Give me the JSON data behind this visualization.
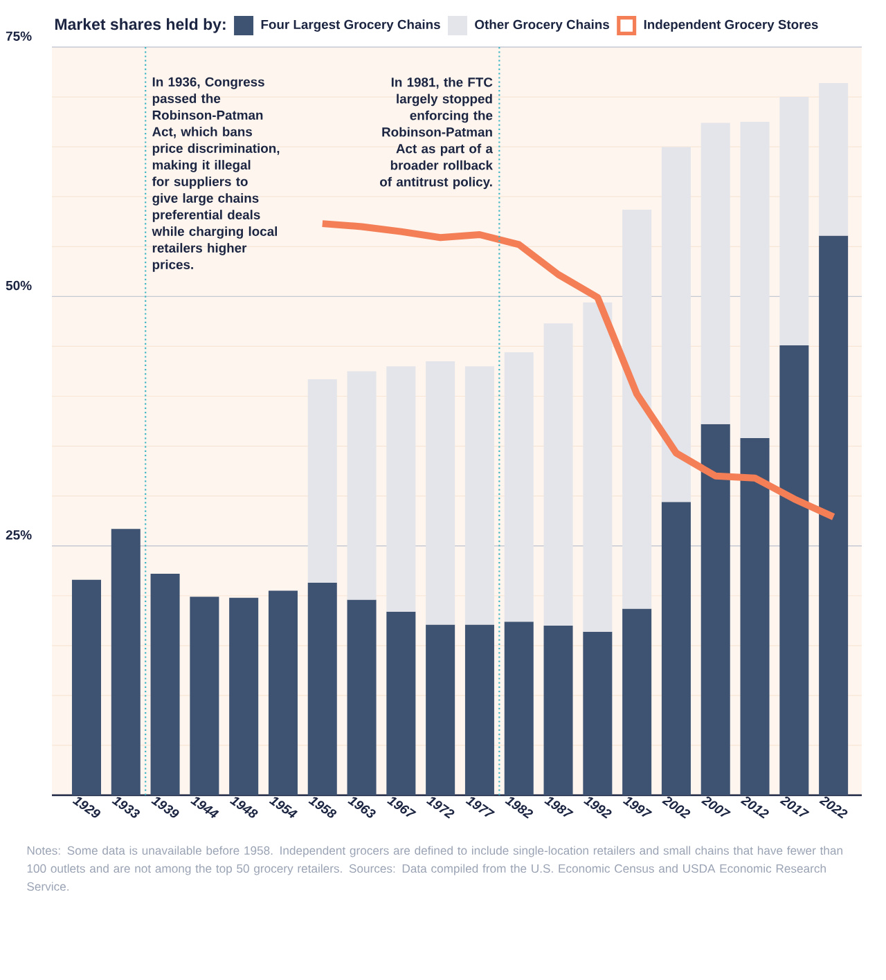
{
  "chart_data": {
    "type": "bar",
    "stacked": true,
    "legend_title": "Market shares held by:",
    "legend": "top",
    "grid": "y",
    "categories": [
      "1929",
      "1933",
      "1939",
      "1944",
      "1948",
      "1954",
      "1958",
      "1963",
      "1967",
      "1972",
      "1977",
      "1982",
      "1987",
      "1992",
      "1997",
      "2002",
      "2007",
      "2012",
      "2017",
      "2022"
    ],
    "series": [
      {
        "name": "Four Largest Grocery Chains",
        "color": "#3e5272",
        "values": [
          21.6,
          26.7,
          22.2,
          19.9,
          19.8,
          20.5,
          21.3,
          19.6,
          18.4,
          17.1,
          17.1,
          17.4,
          17.0,
          16.4,
          18.7,
          29.4,
          37.2,
          35.8,
          45.1,
          56.1
        ]
      },
      {
        "name": "Other Grocery Chains",
        "color": "#e4e5ea",
        "values": [
          null,
          null,
          null,
          null,
          null,
          null,
          20.4,
          22.9,
          24.6,
          26.4,
          25.9,
          27.0,
          30.3,
          33.0,
          40.0,
          35.6,
          30.2,
          31.7,
          24.9,
          15.3
        ]
      },
      {
        "name": "Independent Grocery Stores",
        "type": "line",
        "color": "#f47f56",
        "values": [
          null,
          null,
          null,
          null,
          null,
          null,
          57.3,
          57.0,
          56.5,
          55.9,
          56.2,
          55.2,
          52.2,
          49.9,
          40.2,
          34.3,
          32.0,
          31.8,
          29.7,
          27.9
        ]
      }
    ],
    "ylim": [
      0,
      75
    ],
    "yticks": [
      {
        "value": 5,
        "label": null
      },
      {
        "value": 10,
        "label": null
      },
      {
        "value": 15,
        "label": null
      },
      {
        "value": 20,
        "label": null
      },
      {
        "value": 25,
        "label": "25%"
      },
      {
        "value": 30,
        "label": null
      },
      {
        "value": 35,
        "label": null
      },
      {
        "value": 40,
        "label": null
      },
      {
        "value": 45,
        "label": null
      },
      {
        "value": 50,
        "label": "50%"
      },
      {
        "value": 55,
        "label": null
      },
      {
        "value": 60,
        "label": null
      },
      {
        "value": 65,
        "label": null
      },
      {
        "value": 70,
        "label": null
      },
      {
        "value": 75,
        "label": "75%"
      }
    ],
    "annotations": [
      "In 1936, Congress passed the Robinson-Patman Act, which bans price discrimination, making it illegal for suppliers to give large chains preferential deals while charging local retailers higher prices.",
      "In 1981, the FTC largely stopped enforcing the Robinson-Patman Act as part of a broader rollback of antitrust policy.",
      "Notes: Some data is unavailable before 1958. Independent grocers are defined to include single-location retailers and small chains that have fewer than 100 outlets and are not among the top 50 grocery retailers. Sources: Data compiled from the U.S. Economic Census and USDA Economic Research Service."
    ]
  }
}
